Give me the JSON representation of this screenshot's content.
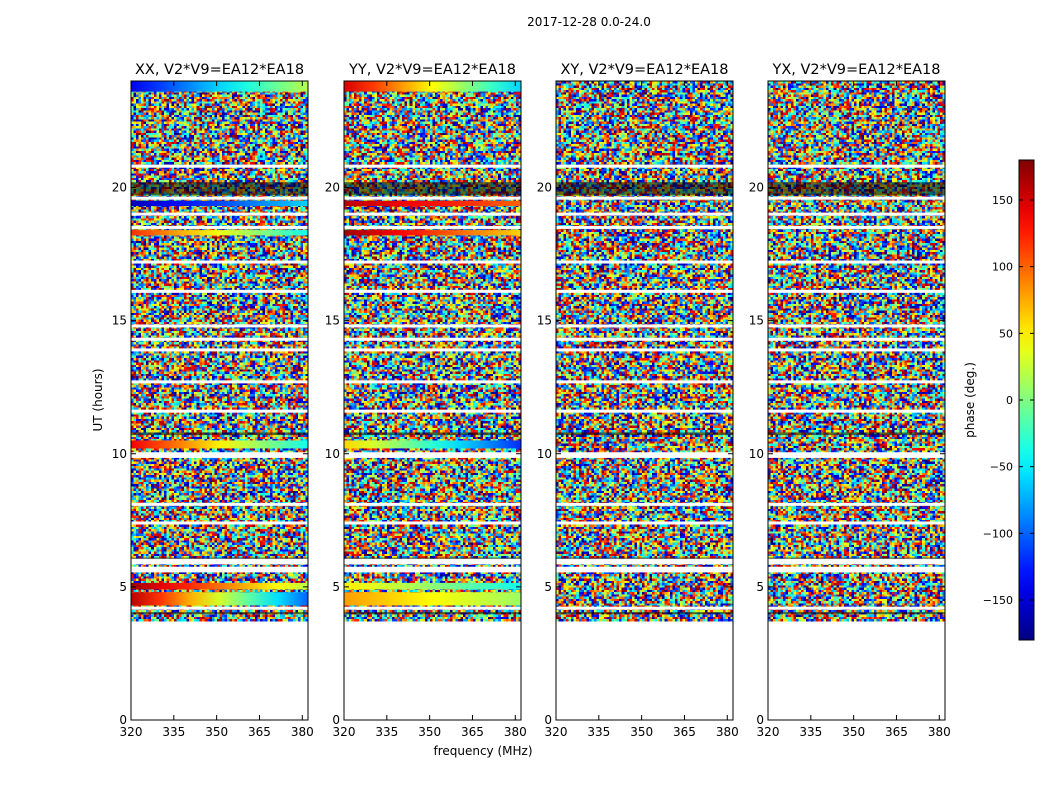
{
  "chart_data": {
    "type": "heatmap",
    "suptitle": "2017-12-28 0.0-24.0",
    "xlabel": "frequency (MHz)",
    "ylabel": "UT (hours)",
    "xlim": [
      320,
      382
    ],
    "ylim": [
      0,
      24
    ],
    "xticks": [
      320,
      335,
      350,
      365,
      380
    ],
    "yticks": [
      0,
      5,
      10,
      15,
      20
    ],
    "data_start_ut": 3.7,
    "panels": [
      {
        "title": "XX, V2*V9=EA12*EA18",
        "pol": "XX",
        "calibrator_bands": [
          {
            "ut": [
              23.6,
              24.0
            ],
            "phase_start": -140,
            "phase_end": 20
          },
          {
            "ut": [
              19.3,
              19.5
            ],
            "phase_start": -160,
            "phase_end": -60
          },
          {
            "ut": [
              18.2,
              18.4
            ],
            "phase_start": 120,
            "phase_end": -40
          },
          {
            "ut": [
              10.2,
              10.5
            ],
            "phase_start": 140,
            "phase_end": -40
          },
          {
            "ut": [
              4.9,
              5.15
            ],
            "phase_start": 170,
            "phase_end": 20
          },
          {
            "ut": [
              4.3,
              4.8
            ],
            "phase_start": 160,
            "phase_end": -100
          }
        ]
      },
      {
        "title": "YY, V2*V9=EA12*EA18",
        "pol": "YY",
        "calibrator_bands": [
          {
            "ut": [
              23.6,
              24.0
            ],
            "phase_start": 150,
            "phase_end": -60
          },
          {
            "ut": [
              19.3,
              19.5
            ],
            "phase_start": 160,
            "phase_end": 100
          },
          {
            "ut": [
              18.2,
              18.4
            ],
            "phase_start": 170,
            "phase_end": 60
          },
          {
            "ut": [
              10.2,
              10.5
            ],
            "phase_start": 60,
            "phase_end": -120
          },
          {
            "ut": [
              4.9,
              5.15
            ],
            "phase_start": 50,
            "phase_end": -40
          },
          {
            "ut": [
              4.3,
              4.8
            ],
            "phase_start": 80,
            "phase_end": 10
          }
        ]
      },
      {
        "title": "XY, V2*V9=EA12*EA18",
        "pol": "XY",
        "calibrator_bands": []
      },
      {
        "title": "YX, V2*V9=EA12*EA18",
        "pol": "YX",
        "calibrator_bands": []
      }
    ],
    "colorbar": {
      "label": "phase (deg.)",
      "range": [
        -180,
        180
      ],
      "ticks": [
        150,
        100,
        50,
        0,
        -50,
        -100,
        -150
      ],
      "tick_labels": [
        "150",
        "100",
        "50",
        "0",
        "−50",
        "−100",
        "−150"
      ],
      "colormap": "jet"
    },
    "flagged_gaps_ut": [
      20.8,
      19.6,
      19.0,
      18.5,
      17.2,
      16.1,
      14.8,
      14.3,
      13.9,
      12.7,
      11.6,
      10.0,
      9.9,
      8.1,
      7.4,
      6.0,
      5.9,
      5.7,
      5.6,
      4.2
    ],
    "dark_bands_ut": [
      [
        19.7,
        20.2
      ],
      [
        10.7,
        10.8
      ],
      [
        6.0,
        6.1
      ],
      [
        4.0,
        4.05
      ]
    ]
  }
}
